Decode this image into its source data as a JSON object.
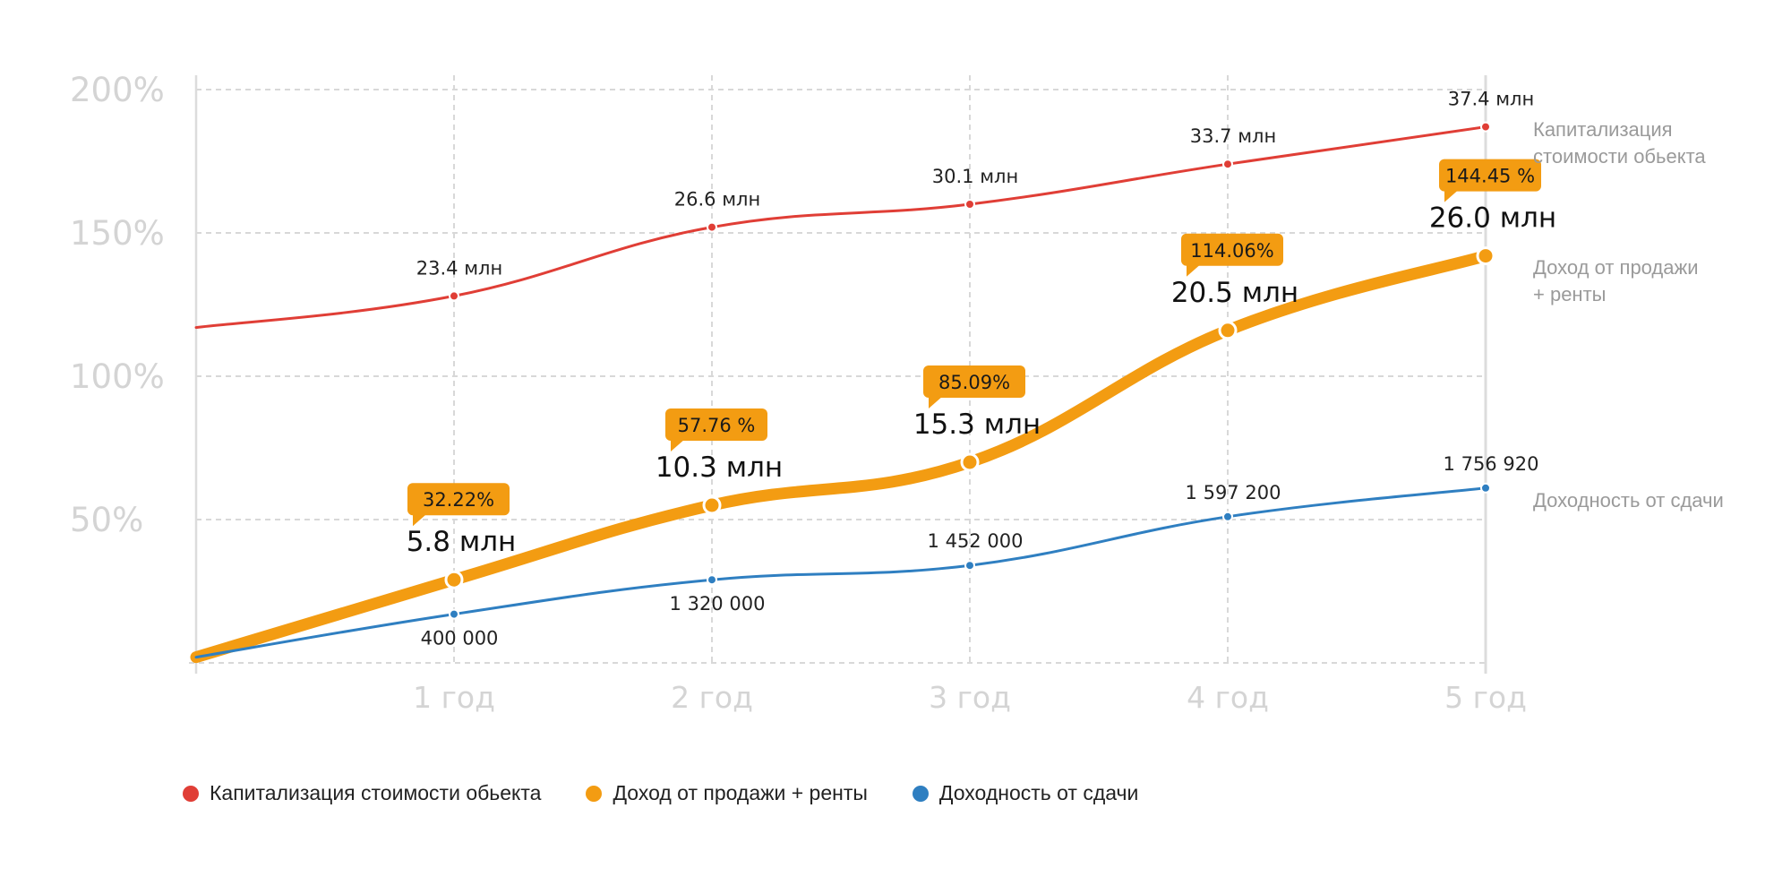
{
  "chart_data": {
    "type": "line",
    "categories": [
      "",
      "1 год",
      "2 год",
      "3 год",
      "4 год",
      "5 год"
    ],
    "y_ticks": [
      "200%",
      "150%",
      "100%",
      "50%"
    ],
    "ylim": [
      0,
      200
    ],
    "grid": true,
    "legend_position": "bottom-left",
    "series": [
      {
        "name": "Капитализация стоимости обьекта",
        "end_label": [
          "Капитализация",
          "стоимости обьекта"
        ],
        "color": "#e03e36",
        "values": [
          117,
          128,
          152,
          160,
          174,
          187
        ],
        "labels": [
          "",
          "23.4 млн",
          "26.6 млн",
          "30.1 млн",
          "33.7 млн",
          "37.4 млн"
        ]
      },
      {
        "name": "Доход от продажи + ренты",
        "end_label": [
          "Доход от продажи",
          "+ ренты"
        ],
        "color": "#f39c12",
        "values": [
          2,
          29,
          55,
          70,
          116,
          142
        ],
        "labels": [
          "",
          "5.8 млн",
          "10.3 млн",
          "15.3 млн",
          "20.5 млн",
          "26.0 млн"
        ],
        "badges": [
          "",
          "32.22%",
          "57.76 %",
          "85.09%",
          "114.06%",
          "144.45 %"
        ]
      },
      {
        "name": "Доходность от сдачи",
        "end_label": [
          "Доходность от сдачи"
        ],
        "color": "#2f7fc1",
        "values": [
          2,
          17,
          29,
          34,
          51,
          61
        ],
        "labels": [
          "",
          "400 000",
          "1 320 000",
          "1 452 000",
          "1 597 200",
          "1 756 920"
        ]
      }
    ]
  }
}
